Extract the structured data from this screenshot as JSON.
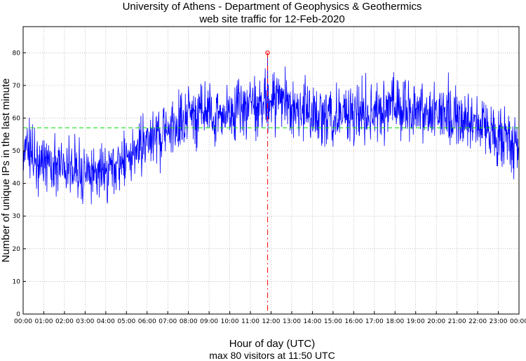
{
  "chart_data": {
    "type": "line",
    "title": "University of Athens - Department of Geophysics & Geothermics",
    "subtitle": "web site traffic for 12-Feb-2020",
    "xlabel": "Hour of day (UTC)",
    "ylabel": "Number of unique IPs in the last minute",
    "footnote": "max 80 visitors at 11:50 UTC",
    "x_tick_labels": [
      "00:00",
      "01:00",
      "02:00",
      "03:00",
      "04:00",
      "05:00",
      "06:00",
      "07:00",
      "08:00",
      "09:00",
      "10:00",
      "11:00",
      "12:00",
      "13:00",
      "14:00",
      "15:00",
      "16:00",
      "17:00",
      "18:00",
      "19:00",
      "20:00",
      "21:00",
      "22:00",
      "23:00",
      "00:00"
    ],
    "y_ticks": [
      0,
      10,
      20,
      30,
      40,
      50,
      60,
      70,
      80
    ],
    "xlim_hours": [
      0,
      24
    ],
    "ylim": [
      0,
      88
    ],
    "grid": true,
    "mean_value": 57,
    "max_value": 80,
    "max_time": "11:50",
    "max_time_hours": 11.833,
    "trend_hours": [
      0,
      0.5,
      1,
      1.5,
      2,
      2.5,
      3,
      3.5,
      4,
      4.5,
      5,
      5.5,
      6,
      6.5,
      7,
      7.5,
      8,
      8.5,
      9,
      9.5,
      10,
      10.5,
      11,
      11.5,
      12,
      12.5,
      13,
      13.5,
      14,
      14.5,
      15,
      15.5,
      16,
      16.5,
      17,
      17.5,
      18,
      18.5,
      19,
      19.5,
      20,
      20.5,
      21,
      21.5,
      22,
      22.5,
      23,
      23.5,
      24
    ],
    "trend_values": [
      50,
      47,
      46,
      45,
      45,
      44,
      42,
      43,
      44,
      46,
      48,
      50,
      52,
      54,
      56,
      59,
      61,
      61,
      62,
      61,
      62,
      63,
      63,
      64,
      65,
      66,
      64,
      62,
      61,
      61,
      61,
      61,
      61,
      61,
      62,
      63,
      64,
      63,
      62,
      62,
      62,
      61,
      60,
      59,
      58,
      57,
      55,
      52,
      49
    ],
    "series": [
      {
        "color": "#0000ff"
      }
    ],
    "colors": {
      "line": "#0000ff",
      "mean_line": "#00dd00",
      "max_marker": "#ff0000",
      "grid": "#999999"
    }
  }
}
